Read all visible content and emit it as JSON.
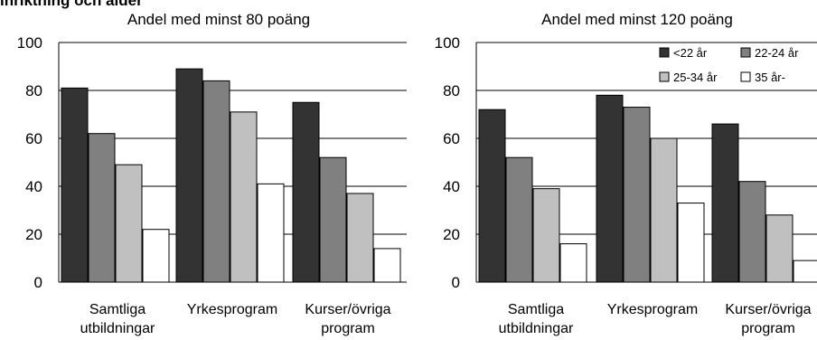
{
  "heading": "inriktning och ålder",
  "chart_data": [
    {
      "type": "bar",
      "title": "Andel med minst 80 poäng",
      "categories": [
        [
          "Samtliga",
          "utbildningar"
        ],
        [
          "Yrkesprogram"
        ],
        [
          "Kurser/övriga",
          "program"
        ]
      ],
      "ylim": [
        0,
        100
      ],
      "yticks": [
        0,
        20,
        40,
        60,
        80,
        100
      ],
      "grid": true,
      "series": [
        {
          "name": "<22 år",
          "color": "#333333",
          "values": [
            81,
            89,
            75
          ]
        },
        {
          "name": "22-24 år",
          "color": "#808080",
          "values": [
            62,
            84,
            52
          ]
        },
        {
          "name": "25-34 år",
          "color": "#c0c0c0",
          "values": [
            49,
            71,
            37
          ]
        },
        {
          "name": "35 år-",
          "color": "#ffffff",
          "values": [
            22,
            41,
            14
          ]
        }
      ]
    },
    {
      "type": "bar",
      "title": "Andel med minst 120 poäng",
      "categories": [
        [
          "Samtliga",
          "utbildningar"
        ],
        [
          "Yrkesprogram"
        ],
        [
          "Kurser/övriga",
          "program"
        ]
      ],
      "ylim": [
        0,
        100
      ],
      "yticks": [
        0,
        20,
        40,
        60,
        80,
        100
      ],
      "grid": true,
      "legend_position": "top-right",
      "series": [
        {
          "name": "<22 år",
          "color": "#333333",
          "values": [
            72,
            78,
            66
          ]
        },
        {
          "name": "22-24 år",
          "color": "#808080",
          "values": [
            52,
            73,
            42
          ]
        },
        {
          "name": "25-34 år",
          "color": "#c0c0c0",
          "values": [
            39,
            60,
            28
          ]
        },
        {
          "name": "35 år-",
          "color": "#ffffff",
          "values": [
            16,
            33,
            9
          ]
        }
      ]
    }
  ]
}
